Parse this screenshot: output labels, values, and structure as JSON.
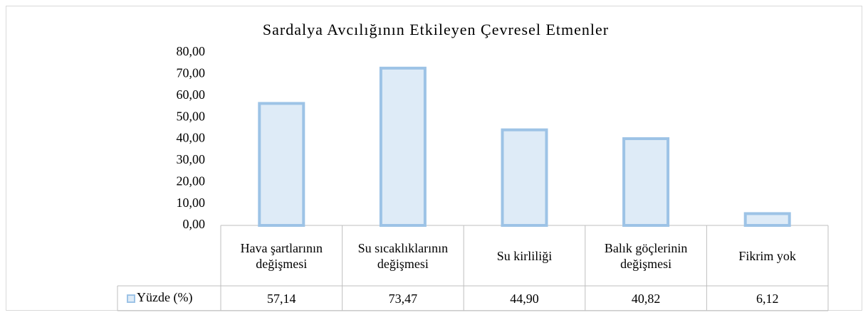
{
  "chart_data": {
    "type": "bar",
    "title": "Sardalya Avcılığının Etkileyen Çevresel Etmenler",
    "categories": [
      "Hava şartlarının değişmesi",
      "Su sıcaklıklarının değişmesi",
      "Su kirliliği",
      "Balık göçlerinin değişmesi",
      "Fikrim yok"
    ],
    "series": [
      {
        "name": "Yüzde (%)",
        "color": "#9dc3e6",
        "fill": "#deebf7",
        "values": [
          57.14,
          73.47,
          44.9,
          40.82,
          6.12
        ],
        "value_labels": [
          "57,14",
          "73,47",
          "44,90",
          "40,82",
          "6,12"
        ]
      }
    ],
    "ylim": [
      0,
      80
    ],
    "yticks": [
      {
        "value": 0,
        "label": "0,00"
      },
      {
        "value": 10,
        "label": "10,00"
      },
      {
        "value": 20,
        "label": "20,00"
      },
      {
        "value": 30,
        "label": "30,00"
      },
      {
        "value": 40,
        "label": "40,00"
      },
      {
        "value": 50,
        "label": "50,00"
      },
      {
        "value": 60,
        "label": "60,00"
      },
      {
        "value": 70,
        "label": "70,00"
      },
      {
        "value": 80,
        "label": "80,00"
      }
    ],
    "grid": false
  }
}
